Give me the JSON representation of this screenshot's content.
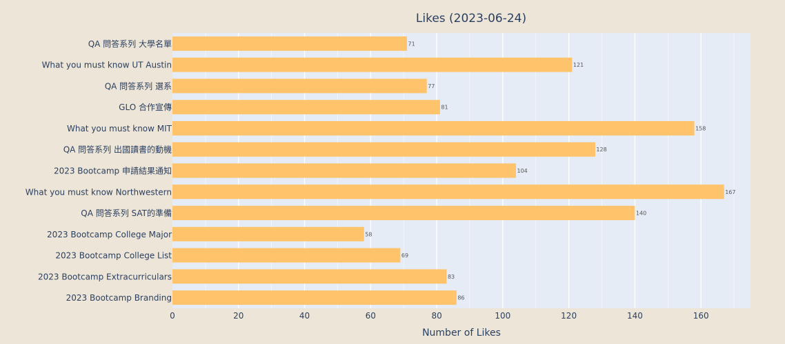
{
  "chart_data": {
    "type": "bar",
    "orientation": "horizontal",
    "title": "Likes (2023-06-24)",
    "xlabel": "Number of Likes",
    "ylabel": "",
    "xlim": [
      0,
      175
    ],
    "xticks": [
      0,
      20,
      40,
      60,
      80,
      100,
      120,
      140,
      160
    ],
    "grid": true,
    "bar_color": "#ffc46b",
    "plot_background": "#e5ecf6",
    "page_background": "#ede5d8",
    "categories": [
      "QA 問答系列 大學名單",
      "What you must know UT Austin",
      "QA 問答系列 選系",
      "GLO 合作宣傳",
      "What you must know MIT",
      "QA 問答系列 出國讀書的動機",
      "2023 Bootcamp 申請結果通知",
      "What you must know Northwestern",
      "QA 問答系列 SAT的準備",
      "2023 Bootcamp College Major",
      "2023 Bootcamp College List",
      "2023 Bootcamp Extracurriculars",
      "2023 Bootcamp Branding"
    ],
    "values": [
      71,
      121,
      77,
      81,
      158,
      128,
      104,
      167,
      140,
      58,
      69,
      83,
      86
    ]
  }
}
